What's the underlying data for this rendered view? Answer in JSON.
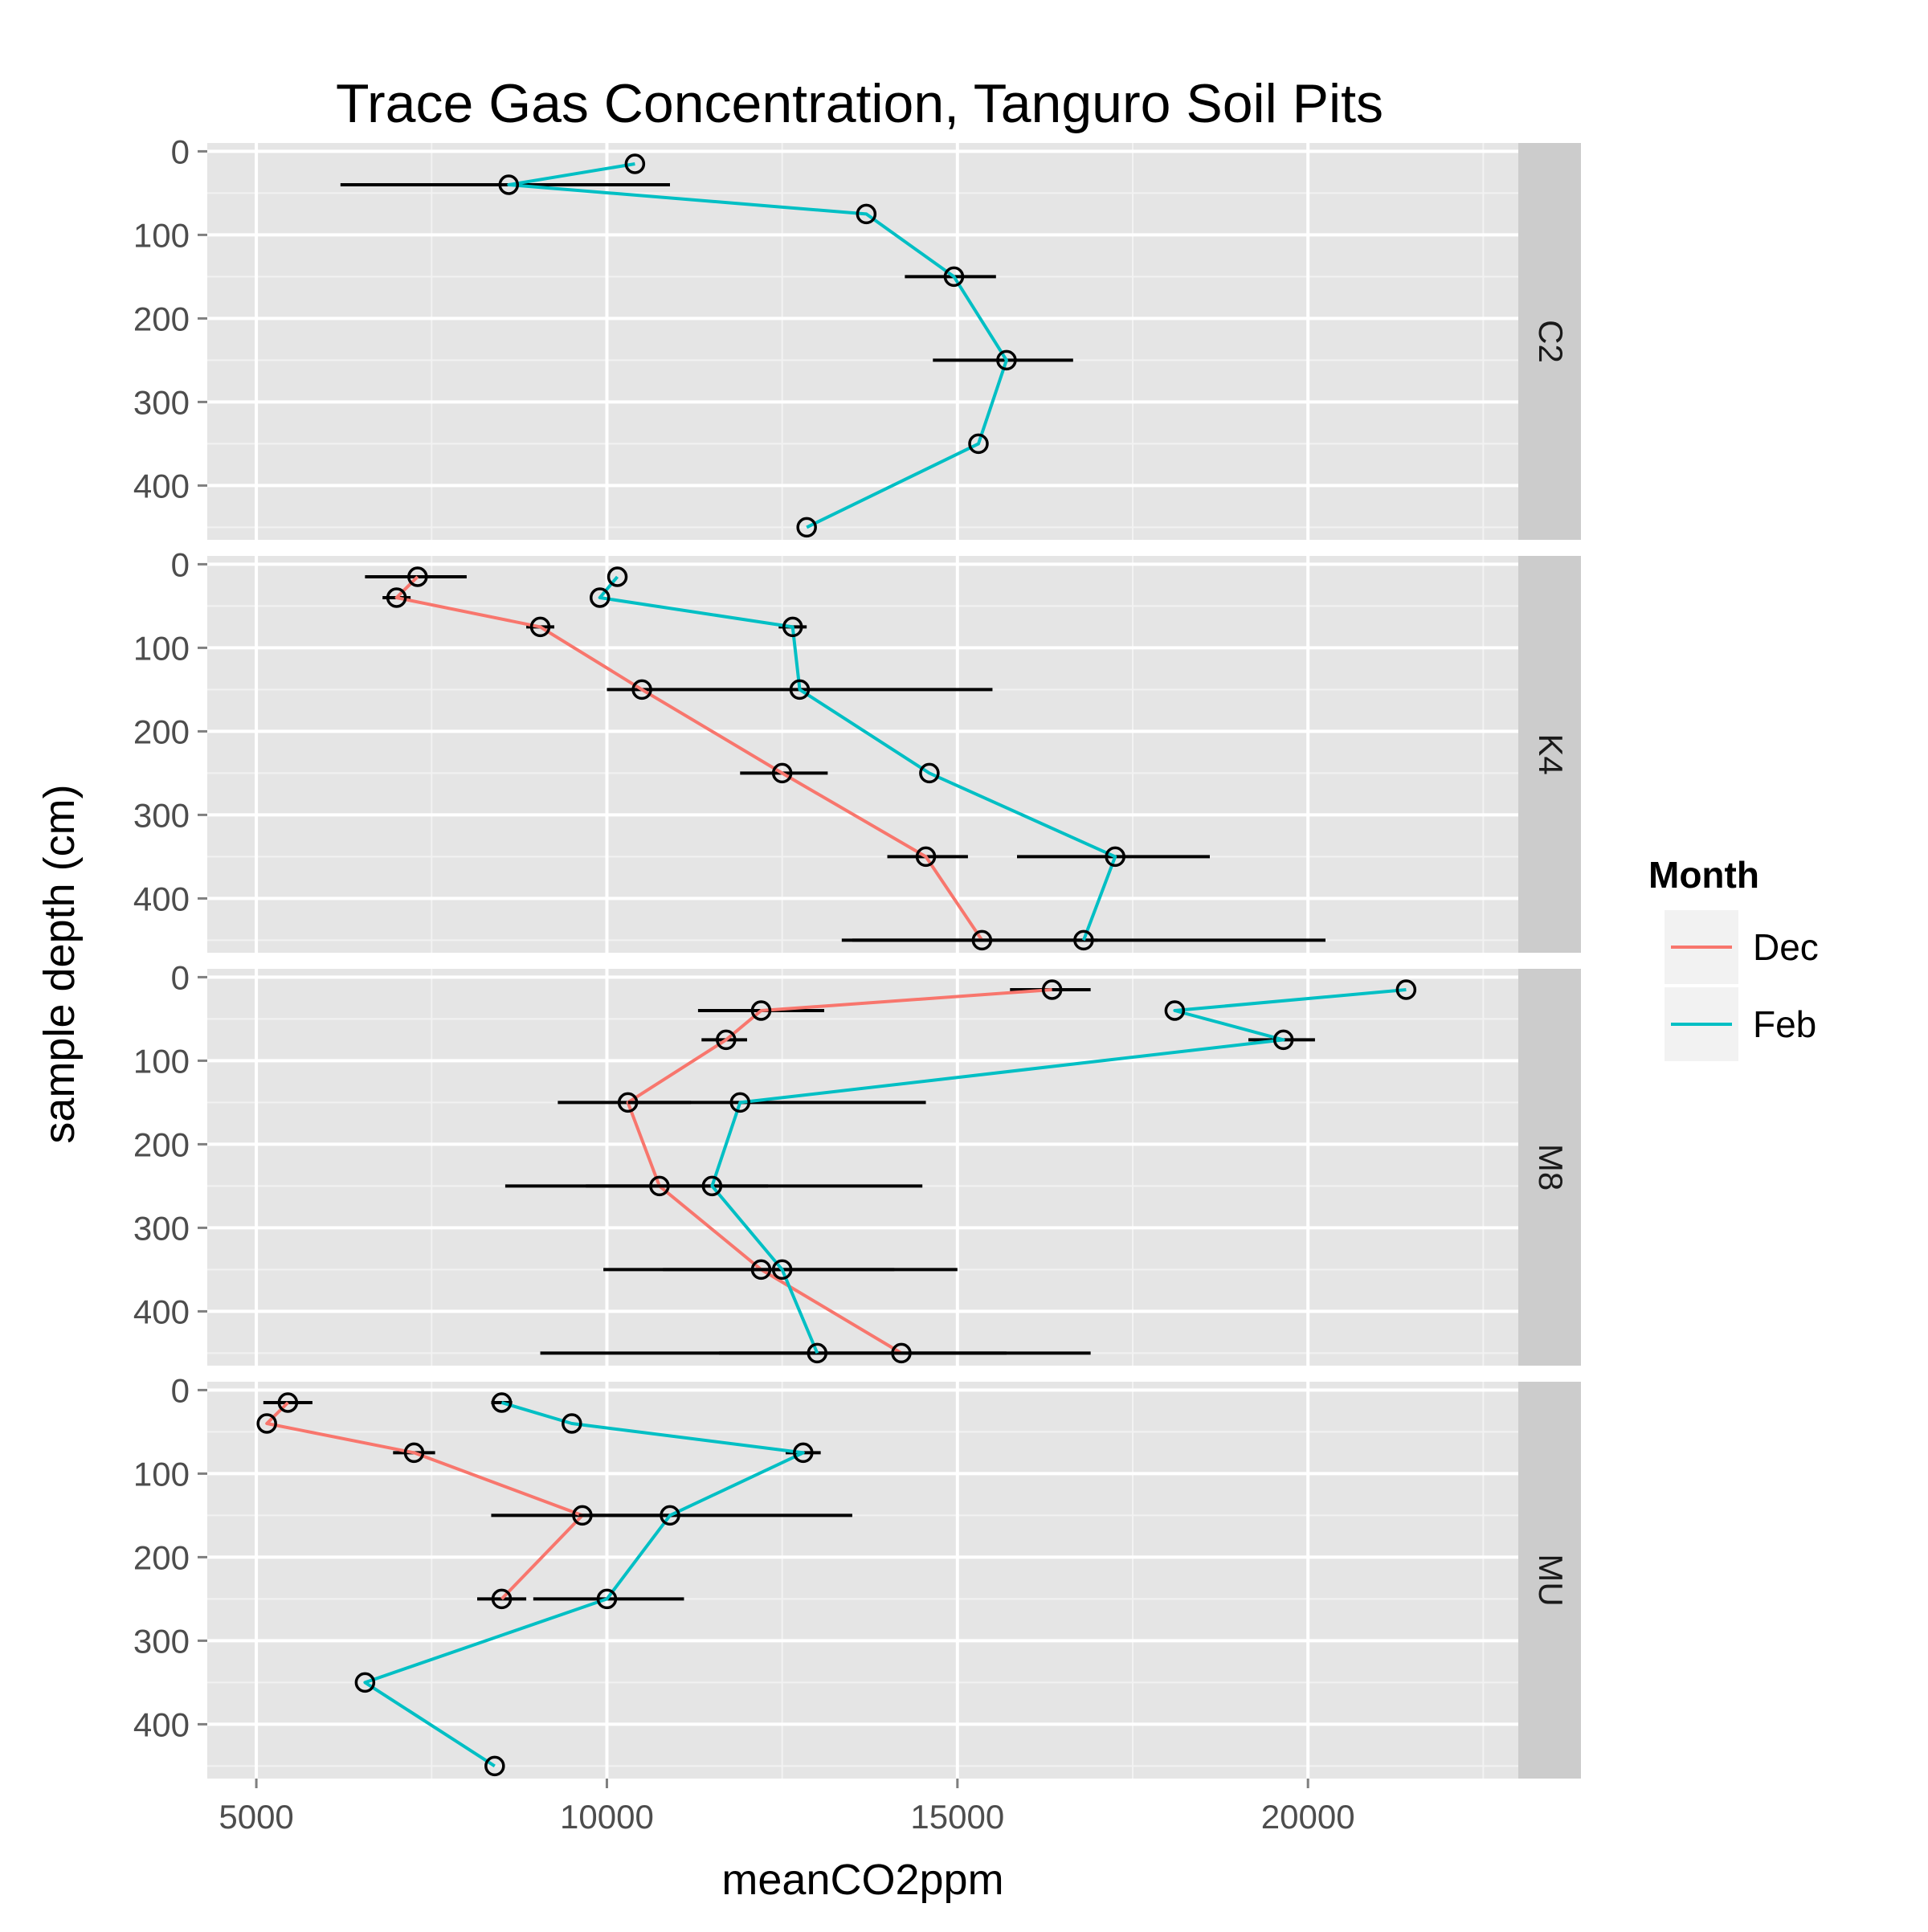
{
  "chart_data": {
    "type": "line",
    "title": "Trace Gas Concentration, Tanguro Soil Pits",
    "xlabel": "meanCO2ppm",
    "ylabel": "sample depth (cm)",
    "xlim": [
      4300,
      23000
    ],
    "ylim": [
      465,
      -10
    ],
    "x_ticks": [
      5000,
      10000,
      15000,
      20000
    ],
    "x_tick_labels": [
      "5000",
      "10000",
      "15000",
      "20000"
    ],
    "y_ticks": [
      0,
      100,
      200,
      300,
      400
    ],
    "y_tick_labels": [
      "0",
      "100",
      "200",
      "300",
      "400"
    ],
    "y_reversed": true,
    "grid": true,
    "legend": {
      "title": "Month",
      "placement": "right",
      "entries": [
        {
          "name": "Dec",
          "color": "#F8766D"
        },
        {
          "name": "Feb",
          "color": "#00BFC4"
        }
      ]
    },
    "colors": {
      "panel_background": "#e5e5e5",
      "strip_background": "#cccccc",
      "grid_major": "#ffffff",
      "grid_minor": "#f2f2f2",
      "error_bar": "#000000",
      "point": "#000000"
    },
    "facets": [
      {
        "label": "C2",
        "series": [
          {
            "name": "Feb",
            "points": [
              {
                "x": 10400,
                "y": 15,
                "err": null
              },
              {
                "x": 8600,
                "y": 40,
                "err": [
                  6200,
                  10900
                ]
              },
              {
                "x": 13700,
                "y": 75,
                "err": null
              },
              {
                "x": 14950,
                "y": 150,
                "err": [
                  14250,
                  15550
                ]
              },
              {
                "x": 15700,
                "y": 250,
                "err": [
                  14650,
                  16650
                ]
              },
              {
                "x": 15300,
                "y": 350,
                "err": null
              },
              {
                "x": 12850,
                "y": 450,
                "err": null
              }
            ]
          }
        ]
      },
      {
        "label": "K4",
        "series": [
          {
            "name": "Dec",
            "points": [
              {
                "x": 7300,
                "y": 15,
                "err": [
                  6550,
                  8000
                ]
              },
              {
                "x": 7000,
                "y": 40,
                "err": [
                  6800,
                  7200
                ]
              },
              {
                "x": 9050,
                "y": 75,
                "err": [
                  8850,
                  9250
                ]
              },
              {
                "x": 10500,
                "y": 150,
                "err": [
                  10000,
                  15500
                ]
              },
              {
                "x": 12500,
                "y": 250,
                "err": [
                  11900,
                  13150
                ]
              },
              {
                "x": 14550,
                "y": 350,
                "err": [
                  14000,
                  15150
                ]
              },
              {
                "x": 15350,
                "y": 450,
                "err": [
                  13350,
                  17000
                ]
              }
            ]
          },
          {
            "name": "Feb",
            "points": [
              {
                "x": 10150,
                "y": 15,
                "err": null
              },
              {
                "x": 9900,
                "y": 40,
                "err": null
              },
              {
                "x": 12650,
                "y": 75,
                "err": [
                  12450,
                  12850
                ]
              },
              {
                "x": 12750,
                "y": 150,
                "err": null
              },
              {
                "x": 14600,
                "y": 250,
                "err": null
              },
              {
                "x": 17250,
                "y": 350,
                "err": [
                  15850,
                  18600
                ]
              },
              {
                "x": 16800,
                "y": 450,
                "err": [
                  13500,
                  20250
                ]
              }
            ]
          }
        ]
      },
      {
        "label": "M8",
        "series": [
          {
            "name": "Dec",
            "points": [
              {
                "x": 16350,
                "y": 15,
                "err": [
                  15750,
                  16900
                ]
              },
              {
                "x": 12200,
                "y": 40,
                "err": [
                  11300,
                  13100
                ]
              },
              {
                "x": 11700,
                "y": 75,
                "err": [
                  11350,
                  12000
                ]
              },
              {
                "x": 10300,
                "y": 150,
                "err": [
                  9300,
                  11200
                ]
              },
              {
                "x": 10750,
                "y": 250,
                "err": [
                  8550,
                  12300
                ]
              },
              {
                "x": 12200,
                "y": 350,
                "err": [
                  9950,
                  14100
                ]
              },
              {
                "x": 14200,
                "y": 450,
                "err": [
                  11600,
                  16900
                ]
              }
            ]
          },
          {
            "name": "Feb",
            "points": [
              {
                "x": 21400,
                "y": 15,
                "err": null
              },
              {
                "x": 18100,
                "y": 40,
                "err": null
              },
              {
                "x": 19650,
                "y": 75,
                "err": [
                  19150,
                  20100
                ]
              },
              {
                "x": 11900,
                "y": 150,
                "err": [
                  10300,
                  14550
                ]
              },
              {
                "x": 11500,
                "y": 250,
                "err": [
                  9700,
                  14500
                ]
              },
              {
                "x": 12500,
                "y": 350,
                "err": [
                  10800,
                  15000
                ]
              },
              {
                "x": 13000,
                "y": 450,
                "err": [
                  9050,
                  15700
                ]
              }
            ]
          }
        ]
      },
      {
        "label": "MU",
        "series": [
          {
            "name": "Dec",
            "points": [
              {
                "x": 5450,
                "y": 15,
                "err": [
                  5100,
                  5800
                ]
              },
              {
                "x": 5150,
                "y": 40,
                "err": null
              },
              {
                "x": 7250,
                "y": 75,
                "err": [
                  6950,
                  7550
                ]
              },
              {
                "x": 9650,
                "y": 150,
                "err": [
                  8350,
                  10950
                ]
              },
              {
                "x": 8500,
                "y": 250,
                "err": [
                  8150,
                  8850
                ]
              }
            ]
          },
          {
            "name": "Feb",
            "points": [
              {
                "x": 8500,
                "y": 15,
                "err": [
                  8350,
                  8650
                ]
              },
              {
                "x": 9500,
                "y": 40,
                "err": null
              },
              {
                "x": 12800,
                "y": 75,
                "err": [
                  12550,
                  13050
                ]
              },
              {
                "x": 10900,
                "y": 150,
                "err": [
                  9600,
                  13500
                ]
              },
              {
                "x": 10000,
                "y": 250,
                "err": [
                  8950,
                  11100
                ]
              },
              {
                "x": 6550,
                "y": 350,
                "err": null
              },
              {
                "x": 8400,
                "y": 450,
                "err": null
              }
            ]
          }
        ]
      }
    ]
  }
}
